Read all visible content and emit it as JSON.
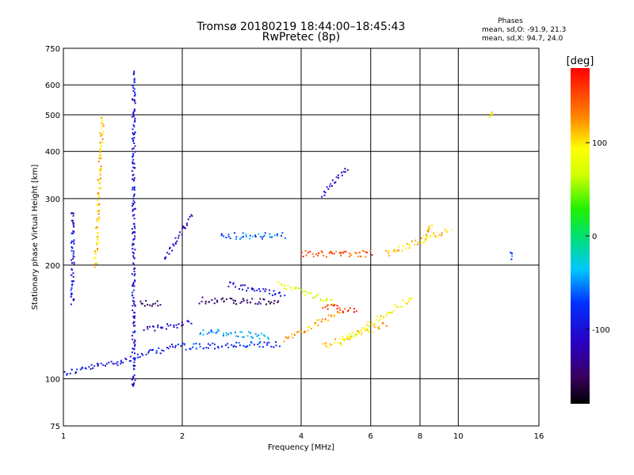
{
  "chart_data": {
    "type": "scatter",
    "title": "Tromsø 20180219 18:44:00–18:45:43",
    "subtitle": "RwPretec (8p)",
    "xlabel": "Frequency [MHz]",
    "ylabel": "Stationary phase Virtual Height [km]",
    "x_scale": "log",
    "y_scale": "log",
    "xlim": [
      1,
      16
    ],
    "ylim": [
      75,
      750
    ],
    "x_ticks": [
      1,
      2,
      4,
      6,
      8,
      10,
      16
    ],
    "x_gridlines": [
      2,
      4,
      6,
      8,
      10
    ],
    "y_ticks": [
      75,
      100,
      200,
      300,
      400,
      500,
      600,
      750
    ],
    "y_gridlines": [
      100,
      200,
      300,
      400,
      500,
      600
    ],
    "grid": true,
    "phase_summary": {
      "heading": "Phases",
      "line1": "mean, sd,O: -91.9, 21.3",
      "line2": "mean, sd,X:  94.7, 24.0"
    },
    "colorbar": {
      "label": "[deg]",
      "range": [
        -180,
        180
      ],
      "ticks": [
        {
          "value": 100,
          "label": "100"
        },
        {
          "value": 0,
          "label": "0"
        },
        {
          "value": -100,
          "label": "-100"
        }
      ]
    },
    "traces": [
      {
        "x_from": 1.0,
        "x_to": 1.4,
        "y_from": 104,
        "y_to": 112,
        "phase": -95
      },
      {
        "x_from": 1.4,
        "x_to": 2.0,
        "y_from": 112,
        "y_to": 124,
        "phase": -95
      },
      {
        "x_from": 2.0,
        "x_to": 3.5,
        "y_from": 122,
        "y_to": 124,
        "phase": -80
      },
      {
        "x_from": 1.6,
        "x_to": 2.1,
        "y_from": 135,
        "y_to": 142,
        "phase": -110
      },
      {
        "x_from": 2.2,
        "x_to": 3.3,
        "y_from": 134,
        "y_to": 130,
        "phase": -40
      },
      {
        "x_from": 2.2,
        "x_to": 3.5,
        "y_from": 162,
        "y_to": 160,
        "phase": -150
      },
      {
        "x_from": 1.55,
        "x_to": 1.75,
        "y_from": 159,
        "y_to": 159,
        "phase": -140
      },
      {
        "x_from": 2.6,
        "x_to": 3.6,
        "y_from": 178,
        "y_to": 168,
        "phase": -100
      },
      {
        "x_from": 2.5,
        "x_to": 3.6,
        "y_from": 240,
        "y_to": 240,
        "phase": -60
      },
      {
        "x_from": 3.5,
        "x_to": 4.8,
        "y_from": 180,
        "y_to": 160,
        "phase": 80
      },
      {
        "x_from": 3.6,
        "x_to": 5.0,
        "y_from": 128,
        "y_to": 150,
        "phase": 120
      },
      {
        "x_from": 4.5,
        "x_to": 6.5,
        "y_from": 122,
        "y_to": 140,
        "phase": 105
      },
      {
        "x_from": 5.0,
        "x_to": 7.6,
        "y_from": 125,
        "y_to": 165,
        "phase": 90
      },
      {
        "x_from": 4.0,
        "x_to": 6.0,
        "y_from": 215,
        "y_to": 215,
        "phase": 150
      },
      {
        "x_from": 6.5,
        "x_to": 9.5,
        "y_from": 215,
        "y_to": 250,
        "phase": 110
      },
      {
        "x_from": 4.5,
        "x_to": 5.5,
        "y_from": 156,
        "y_to": 152,
        "phase": 160
      },
      {
        "x_from": 1.5,
        "x_to": 1.5,
        "y_from": 95,
        "y_to": 650,
        "phase": -100
      },
      {
        "x_from": 1.05,
        "x_to": 1.05,
        "y_from": 160,
        "y_to": 280,
        "phase": -100
      },
      {
        "x_from": 1.2,
        "x_to": 1.25,
        "y_from": 200,
        "y_to": 500,
        "phase": 110
      },
      {
        "x_from": 13.5,
        "x_to": 13.5,
        "y_from": 212,
        "y_to": 215,
        "phase": -60
      },
      {
        "x_from": 12.0,
        "x_to": 12.0,
        "y_from": 505,
        "y_to": 505,
        "phase": 100
      },
      {
        "x_from": 1.8,
        "x_to": 2.1,
        "y_from": 210,
        "y_to": 270,
        "phase": -110
      },
      {
        "x_from": 8.2,
        "x_to": 8.5,
        "y_from": 230,
        "y_to": 260,
        "phase": 105
      },
      {
        "x_from": 4.5,
        "x_to": 5.2,
        "y_from": 310,
        "y_to": 360,
        "phase": -110
      }
    ]
  }
}
